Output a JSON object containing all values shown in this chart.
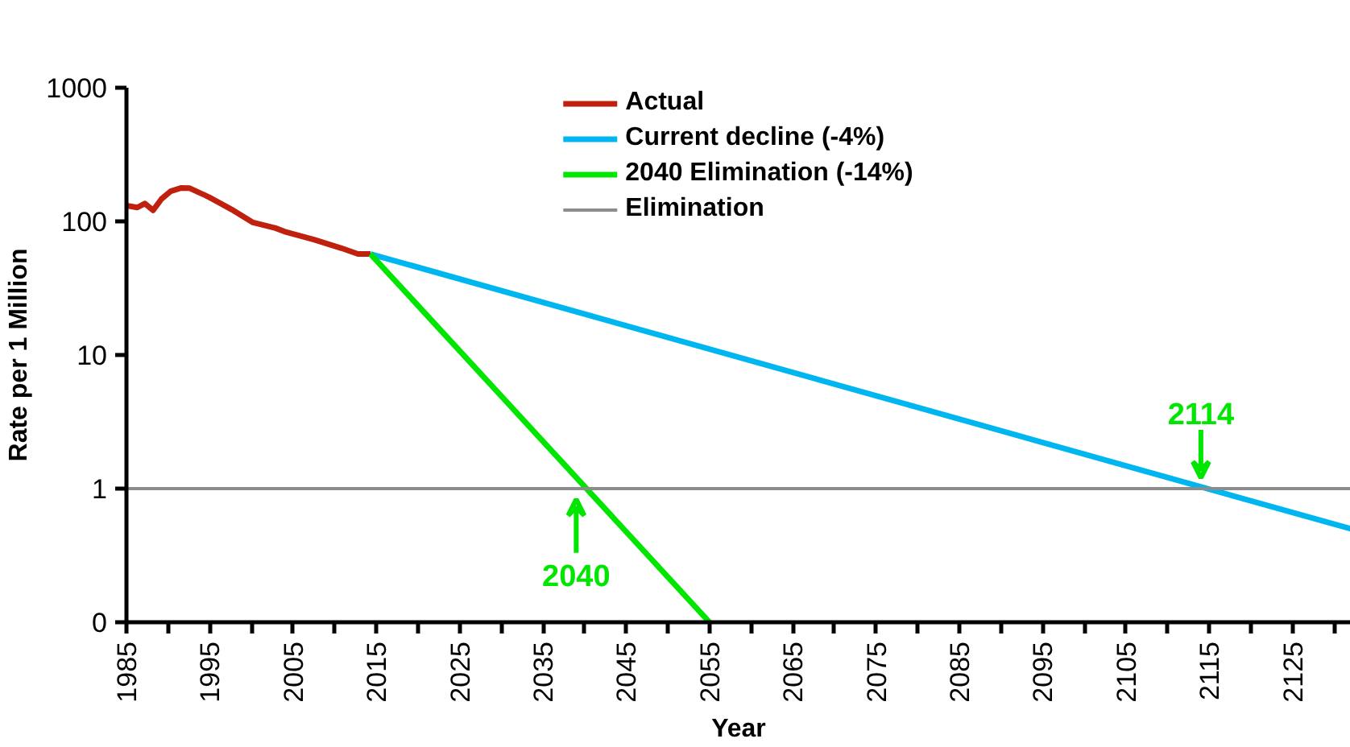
{
  "chart_data": {
    "type": "line",
    "xlabel": "Year",
    "ylabel": "Rate per 1 Million",
    "log": "y",
    "grid": false,
    "legend": "top",
    "marker": "none",
    "line_style": "solid",
    "xlim": [
      1985,
      2132
    ],
    "ylim": [
      0.1,
      1000
    ],
    "xticks": [
      1985,
      {
        "value": 1990,
        "label": null
      },
      1995,
      {
        "value": 2000,
        "label": null
      },
      2005,
      {
        "value": 2010,
        "label": null
      },
      2015,
      {
        "value": 2020,
        "label": null
      },
      2025,
      {
        "value": 2030,
        "label": null
      },
      2035,
      {
        "value": 2040,
        "label": null
      },
      2045,
      {
        "value": 2050,
        "label": null
      },
      2055,
      {
        "value": 2060,
        "label": null
      },
      2065,
      {
        "value": 2070,
        "label": null
      },
      2075,
      {
        "value": 2080,
        "label": null
      },
      2085,
      {
        "value": 2090,
        "label": null
      },
      2095,
      {
        "value": 2100,
        "label": null
      },
      2105,
      {
        "value": 2110,
        "label": null
      },
      2115,
      {
        "value": 2120,
        "label": null
      },
      2125,
      {
        "value": 2130,
        "label": null
      }
    ],
    "yticks": [
      {
        "value": 0.1,
        "label": "0"
      },
      1,
      10,
      100,
      1000
    ],
    "series": [
      {
        "name": "Actual",
        "color": "#c0200e",
        "x": [
          1985,
          1986.3,
          1987.2,
          1988.2,
          1989.2,
          1990.3,
          1991.6,
          1992.6,
          1994.9,
          1997.6,
          2000.2,
          2002.9,
          2004.2,
          2007.5,
          2010.8,
          2012.8,
          2014.3
        ],
        "values": [
          131,
          127,
          136,
          121,
          147,
          168,
          178,
          177,
          152,
          123,
          98,
          89,
          83,
          73,
          63,
          57,
          57
        ]
      },
      {
        "name": "Current decline (-4%)",
        "color": "#00b6f0",
        "x": [
          2014.3,
          2132
        ],
        "values": [
          57,
          0.5
        ]
      },
      {
        "name": "2040 Elimination (-14%)",
        "color": "#00e600",
        "x": [
          2014.3,
          2055
        ],
        "values": [
          57,
          0.1
        ]
      }
    ],
    "ref_lines": [
      {
        "axis": "y",
        "value": 1,
        "label": "Elimination",
        "color": "#8c8c8c",
        "line_style": "solid"
      }
    ],
    "annotations": [
      {
        "text": "2040",
        "x": 2039,
        "y": 1
      },
      {
        "text": "2114",
        "x": 2114,
        "y": 1
      }
    ]
  }
}
